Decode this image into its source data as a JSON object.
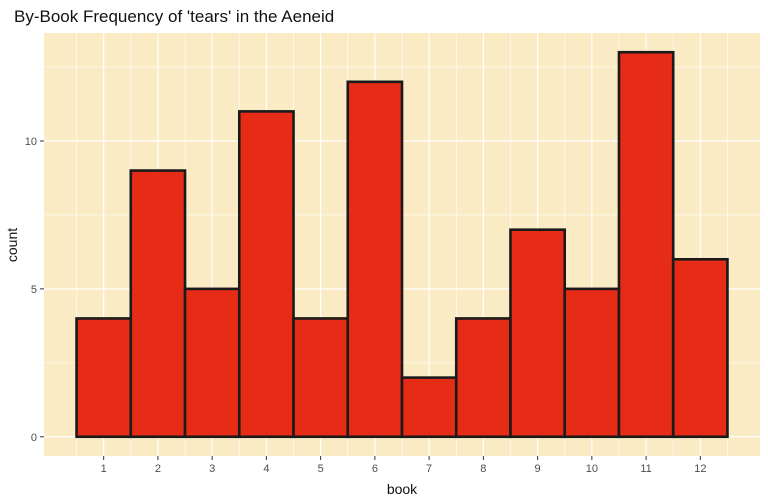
{
  "chart_data": {
    "type": "bar",
    "title": "By-Book Frequency of 'tears' in the Aeneid",
    "xlabel": "book",
    "ylabel": "count",
    "categories": [
      "1",
      "2",
      "3",
      "4",
      "5",
      "6",
      "7",
      "8",
      "9",
      "10",
      "11",
      "12"
    ],
    "values": [
      4,
      9,
      5,
      11,
      4,
      12,
      2,
      4,
      7,
      5,
      13,
      6
    ],
    "ylim": [
      -0.65,
      13.65
    ],
    "yticks": [
      0,
      5,
      10
    ],
    "ytick_labels": [
      "0",
      "5",
      "10"
    ],
    "grid": true,
    "colors": {
      "panel_background": "#faebc4",
      "grid": "#ffffff",
      "bar_fill": "#e62c17",
      "bar_outline": "#1a1a1a"
    }
  }
}
